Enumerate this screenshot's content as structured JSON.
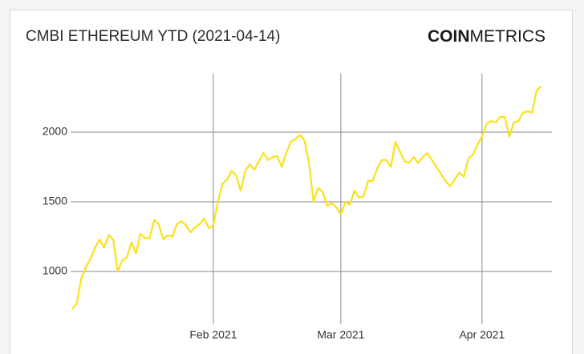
{
  "chart_data": {
    "type": "line",
    "title": "CMBI ETHEREUM YTD (2021-04-14)",
    "logo": [
      "COIN",
      "METRICS"
    ],
    "x": [
      "2021-01-01",
      "2021-01-02",
      "2021-01-03",
      "2021-01-04",
      "2021-01-05",
      "2021-01-06",
      "2021-01-07",
      "2021-01-08",
      "2021-01-09",
      "2021-01-10",
      "2021-01-11",
      "2021-01-12",
      "2021-01-13",
      "2021-01-14",
      "2021-01-15",
      "2021-01-16",
      "2021-01-17",
      "2021-01-18",
      "2021-01-19",
      "2021-01-20",
      "2021-01-21",
      "2021-01-22",
      "2021-01-23",
      "2021-01-24",
      "2021-01-25",
      "2021-01-26",
      "2021-01-27",
      "2021-01-28",
      "2021-01-29",
      "2021-01-30",
      "2021-01-31",
      "2021-02-01",
      "2021-02-02",
      "2021-02-03",
      "2021-02-04",
      "2021-02-05",
      "2021-02-06",
      "2021-02-07",
      "2021-02-08",
      "2021-02-09",
      "2021-02-10",
      "2021-02-11",
      "2021-02-12",
      "2021-02-13",
      "2021-02-14",
      "2021-02-15",
      "2021-02-16",
      "2021-02-17",
      "2021-02-18",
      "2021-02-19",
      "2021-02-20",
      "2021-02-21",
      "2021-02-22",
      "2021-02-23",
      "2021-02-24",
      "2021-02-25",
      "2021-02-26",
      "2021-02-27",
      "2021-02-28",
      "2021-03-01",
      "2021-03-02",
      "2021-03-03",
      "2021-03-04",
      "2021-03-05",
      "2021-03-06",
      "2021-03-07",
      "2021-03-08",
      "2021-03-09",
      "2021-03-10",
      "2021-03-11",
      "2021-03-12",
      "2021-03-13",
      "2021-03-14",
      "2021-03-15",
      "2021-03-16",
      "2021-03-17",
      "2021-03-18",
      "2021-03-19",
      "2021-03-20",
      "2021-03-21",
      "2021-03-22",
      "2021-03-23",
      "2021-03-24",
      "2021-03-25",
      "2021-03-26",
      "2021-03-27",
      "2021-03-28",
      "2021-03-29",
      "2021-03-30",
      "2021-03-31",
      "2021-04-01",
      "2021-04-02",
      "2021-04-03",
      "2021-04-04",
      "2021-04-05",
      "2021-04-06",
      "2021-04-07",
      "2021-04-08",
      "2021-04-09",
      "2021-04-10",
      "2021-04-11",
      "2021-04-12",
      "2021-04-13",
      "2021-04-14"
    ],
    "series": [
      {
        "color": "#f9e21b",
        "values": [
          730,
          770,
          950,
          1030,
          1090,
          1170,
          1230,
          1170,
          1260,
          1230,
          1000,
          1080,
          1100,
          1210,
          1130,
          1270,
          1240,
          1240,
          1370,
          1340,
          1230,
          1260,
          1250,
          1340,
          1360,
          1330,
          1280,
          1320,
          1340,
          1380,
          1310,
          1330,
          1500,
          1630,
          1660,
          1720,
          1690,
          1580,
          1720,
          1770,
          1730,
          1790,
          1850,
          1800,
          1820,
          1830,
          1750,
          1850,
          1930,
          1950,
          1980,
          1940,
          1780,
          1500,
          1600,
          1570,
          1470,
          1490,
          1460,
          1410,
          1500,
          1480,
          1580,
          1530,
          1540,
          1650,
          1650,
          1740,
          1800,
          1800,
          1750,
          1930,
          1860,
          1790,
          1780,
          1820,
          1780,
          1820,
          1850,
          1800,
          1750,
          1700,
          1650,
          1610,
          1660,
          1710,
          1680,
          1810,
          1840,
          1910,
          1970,
          2060,
          2080,
          2070,
          2110,
          2110,
          1970,
          2070,
          2080,
          2140,
          2150,
          2140,
          2300,
          2330
        ]
      }
    ],
    "xlim": [
      "2021-01-01",
      "2021-04-16"
    ],
    "xticks": [
      {
        "value": "2021-02-01",
        "label": "Feb 2021"
      },
      {
        "value": "2021-03-01",
        "label": "Mar 2021"
      },
      {
        "value": "2021-04-01",
        "label": "Apr 2021"
      }
    ],
    "ylim": [
      620,
      2420
    ],
    "yticks": [
      1000,
      1500,
      2000
    ],
    "grid": true
  }
}
